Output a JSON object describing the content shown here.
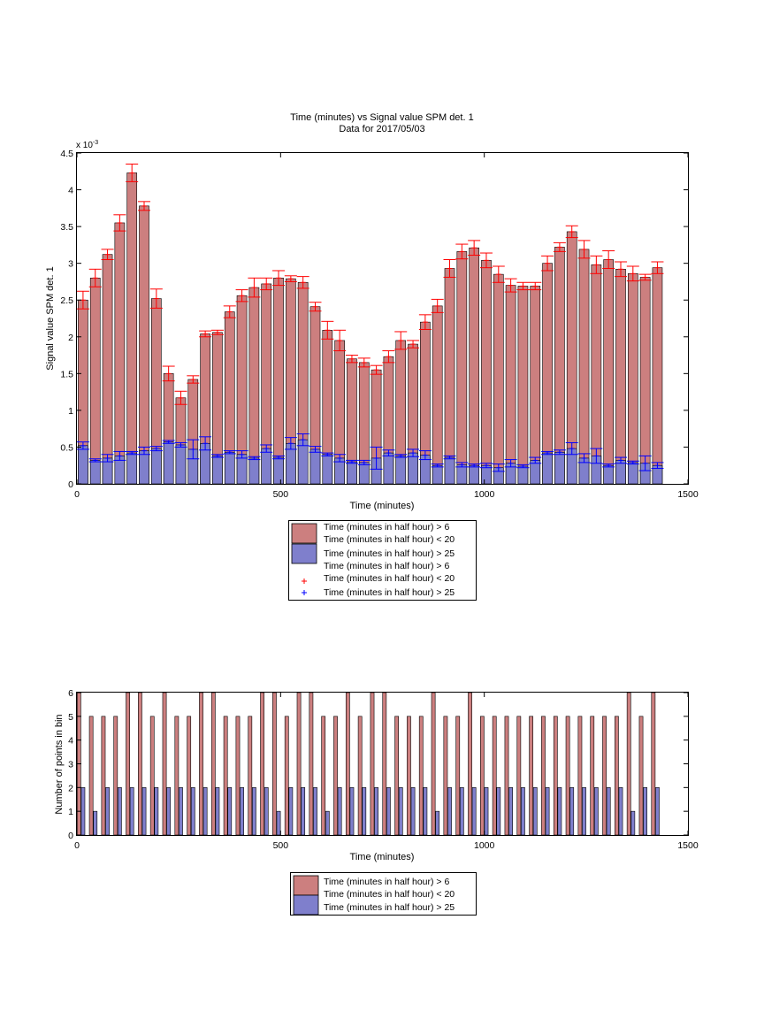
{
  "chart_data": [
    {
      "type": "bar",
      "title": "Time (minutes) vs Signal value SPM det. 1",
      "subtitle": "Data for 2017/05/03",
      "xlabel": "Time (minutes)",
      "ylabel": "Signal value SPM det. 1",
      "y_exponent": "x 10",
      "y_exponent_power": "-3",
      "xlim": [
        0,
        1500
      ],
      "ylim": [
        0,
        4.5
      ],
      "x_ticks": [
        0,
        500,
        1000,
        1500
      ],
      "x_tick_labels": [
        "0",
        "500",
        "1000",
        "1500"
      ],
      "y_ticks": [
        0,
        0.5,
        1,
        1.5,
        2,
        2.5,
        3,
        3.5,
        4,
        4.5
      ],
      "y_tick_labels": [
        "0",
        "0.5",
        "1",
        "1.5",
        "2",
        "2.5",
        "3",
        "3.5",
        "4",
        "4.5"
      ],
      "grid": false,
      "legend_position": "below",
      "x": [
        15,
        45,
        75,
        105,
        135,
        165,
        195,
        225,
        255,
        285,
        315,
        345,
        375,
        405,
        435,
        465,
        495,
        525,
        555,
        585,
        615,
        645,
        675,
        705,
        735,
        765,
        795,
        825,
        855,
        885,
        915,
        945,
        975,
        1005,
        1035,
        1065,
        1095,
        1125,
        1155,
        1185,
        1215,
        1245,
        1275,
        1305,
        1335,
        1365,
        1395,
        1425
      ],
      "series": [
        {
          "name": "Time (minutes in half hour) > 6 Time (minutes in half hour) < 20",
          "color": "#cc7f7f",
          "error_color": "#ff0000",
          "values": [
            2.5,
            2.8,
            3.12,
            3.55,
            4.23,
            3.78,
            2.52,
            1.5,
            1.17,
            1.42,
            2.04,
            2.06,
            2.34,
            2.56,
            2.67,
            2.72,
            2.8,
            2.79,
            2.74,
            2.41,
            2.09,
            1.95,
            1.7,
            1.65,
            1.55,
            1.73,
            1.95,
            1.9,
            2.2,
            2.42,
            2.93,
            3.16,
            3.21,
            3.04,
            2.85,
            2.7,
            2.69,
            2.69,
            3.0,
            3.22,
            3.43,
            3.19,
            2.98,
            3.05,
            2.92,
            2.86,
            2.81,
            2.94
          ],
          "errors": [
            0.12,
            0.12,
            0.07,
            0.11,
            0.12,
            0.06,
            0.13,
            0.1,
            0.09,
            0.05,
            0.04,
            0.03,
            0.08,
            0.08,
            0.13,
            0.08,
            0.1,
            0.04,
            0.08,
            0.06,
            0.12,
            0.14,
            0.05,
            0.06,
            0.06,
            0.08,
            0.12,
            0.05,
            0.1,
            0.09,
            0.12,
            0.1,
            0.1,
            0.1,
            0.11,
            0.09,
            0.05,
            0.05,
            0.1,
            0.06,
            0.08,
            0.12,
            0.12,
            0.12,
            0.1,
            0.1,
            0.04,
            0.08
          ]
        },
        {
          "name": "Time (minutes in half hour) > 25",
          "color": "#7f7fcc",
          "error_color": "#0000ff",
          "values": [
            0.52,
            0.32,
            0.35,
            0.38,
            0.42,
            0.45,
            0.48,
            0.57,
            0.53,
            0.47,
            0.55,
            0.38,
            0.43,
            0.4,
            0.35,
            0.48,
            0.36,
            0.55,
            0.6,
            0.47,
            0.4,
            0.35,
            0.3,
            0.29,
            0.35,
            0.42,
            0.38,
            0.42,
            0.39,
            0.25,
            0.36,
            0.26,
            0.25,
            0.25,
            0.22,
            0.28,
            0.24,
            0.32,
            0.42,
            0.43,
            0.48,
            0.35,
            0.38,
            0.25,
            0.32,
            0.29,
            0.28,
            0.25
          ]
        }
      ],
      "error_series": [
        {
          "name": "Time (minutes in half hour) > 6 Time (minutes in half hour) < 20",
          "marker": "+",
          "color": "#ff0000"
        },
        {
          "name": "Time (minutes in half hour) > 25",
          "marker": "+",
          "color": "#0000ff",
          "errors": [
            0.05,
            0.02,
            0.05,
            0.06,
            0.02,
            0.05,
            0.03,
            0.02,
            0.03,
            0.13,
            0.09,
            0.02,
            0.02,
            0.05,
            0.02,
            0.05,
            0.02,
            0.08,
            0.08,
            0.04,
            0.02,
            0.05,
            0.02,
            0.03,
            0.15,
            0.04,
            0.02,
            0.05,
            0.06,
            0.02,
            0.02,
            0.03,
            0.02,
            0.03,
            0.05,
            0.05,
            0.02,
            0.04,
            0.02,
            0.03,
            0.08,
            0.06,
            0.1,
            0.02,
            0.04,
            0.02,
            0.1,
            0.04
          ]
        }
      ],
      "legend": [
        "Time (minutes in half hour) > 6",
        "Time (minutes in half hour) < 20",
        "Time (minutes in half hour) > 25",
        "Time (minutes in half hour) > 6",
        "Time (minutes in half hour) < 20",
        "Time (minutes in half hour) > 25"
      ]
    },
    {
      "type": "bar",
      "xlabel": "Time (minutes)",
      "ylabel": "Number of points in bin",
      "xlim": [
        0,
        1500
      ],
      "ylim": [
        0,
        6
      ],
      "x_ticks": [
        0,
        500,
        1000,
        1500
      ],
      "x_tick_labels": [
        "0",
        "500",
        "1000",
        "1500"
      ],
      "y_ticks": [
        0,
        1,
        2,
        3,
        4,
        5,
        6
      ],
      "y_tick_labels": [
        "0",
        "1",
        "2",
        "3",
        "4",
        "5",
        "6"
      ],
      "grid": false,
      "legend_position": "below",
      "series": [
        {
          "name": "Time (minutes in half hour) > 6 Time (minutes in half hour) < 20",
          "color": "#cc7f7f",
          "x": [
            5,
            35,
            65,
            95,
            125,
            155,
            185,
            215,
            245,
            275,
            305,
            335,
            365,
            395,
            425,
            455,
            485,
            515,
            545,
            575,
            605,
            635,
            665,
            695,
            725,
            755,
            785,
            815,
            845,
            875,
            905,
            935,
            965,
            995,
            1025,
            1055,
            1085,
            1115,
            1145,
            1175,
            1205,
            1235,
            1265,
            1295,
            1325,
            1355,
            1385,
            1415
          ],
          "values": [
            6,
            5,
            5,
            5,
            6,
            6,
            5,
            6,
            5,
            5,
            6,
            6,
            5,
            5,
            5,
            6,
            6,
            5,
            6,
            6,
            5,
            5,
            6,
            5,
            6,
            6,
            5,
            5,
            5,
            6,
            5,
            5,
            6,
            5,
            5,
            5,
            5,
            5,
            5,
            5,
            5,
            5,
            5,
            5,
            5,
            6,
            5,
            6
          ]
        },
        {
          "name": "Time (minutes in half hour) > 25",
          "color": "#7f7fcc",
          "x": [
            15,
            45,
            75,
            105,
            135,
            165,
            195,
            225,
            255,
            285,
            315,
            345,
            375,
            405,
            435,
            465,
            495,
            525,
            555,
            585,
            615,
            645,
            675,
            705,
            735,
            765,
            795,
            825,
            855,
            885,
            915,
            945,
            975,
            1005,
            1035,
            1065,
            1095,
            1125,
            1155,
            1185,
            1215,
            1245,
            1275,
            1305,
            1335,
            1365,
            1395,
            1425
          ],
          "values": [
            2,
            1,
            2,
            2,
            2,
            2,
            2,
            2,
            2,
            2,
            2,
            2,
            2,
            2,
            2,
            2,
            1,
            2,
            2,
            2,
            1,
            2,
            2,
            2,
            2,
            2,
            2,
            2,
            2,
            1,
            2,
            2,
            2,
            2,
            2,
            2,
            2,
            2,
            2,
            2,
            2,
            2,
            2,
            2,
            2,
            1,
            2,
            2
          ]
        }
      ],
      "legend": [
        "Time (minutes in half hour) > 6",
        "Time (minutes in half hour) < 20",
        "Time (minutes in half hour) > 25"
      ]
    }
  ]
}
